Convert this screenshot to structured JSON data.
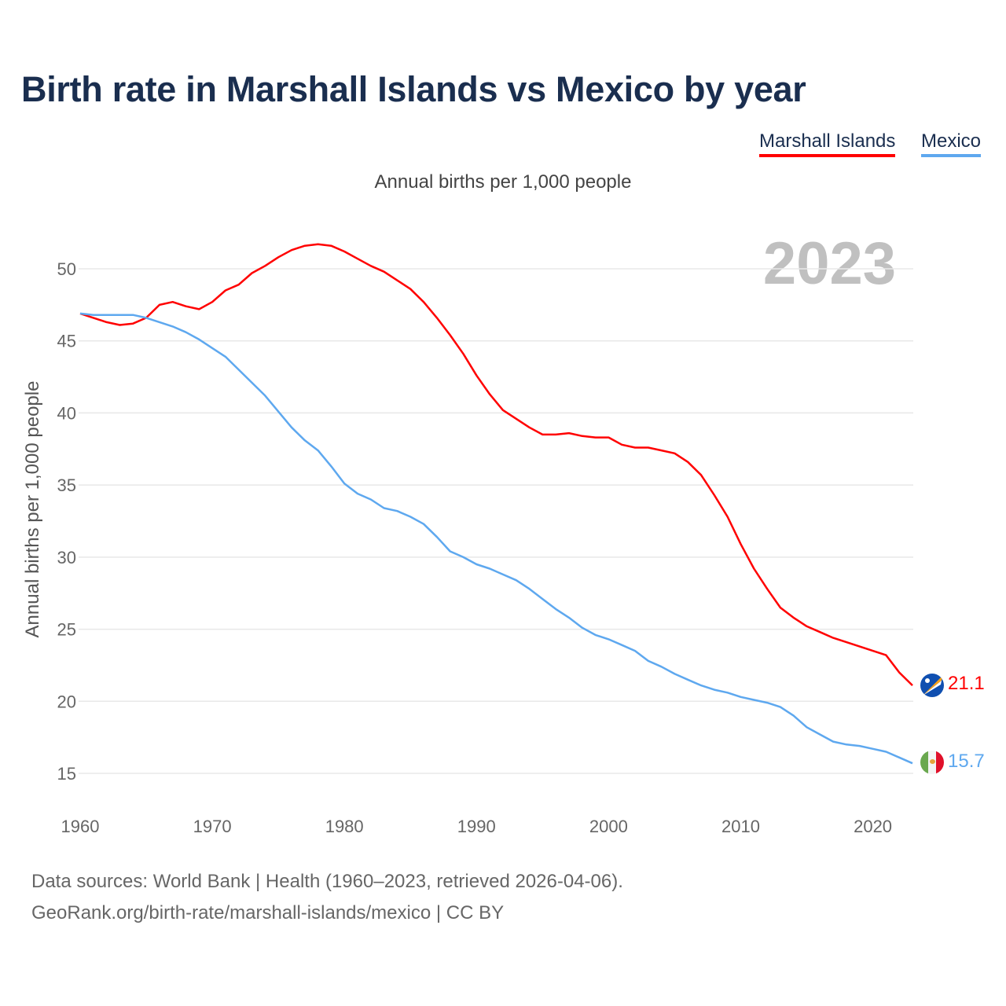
{
  "title": "Birth rate in Marshall Islands vs Mexico by year",
  "year_display": "2023",
  "footer": {
    "line1": "Data sources: World Bank | Health (1960–2023, retrieved 2026-04-06).",
    "line2": "GeoRank.org/birth-rate/marshall-islands/mexico | CC BY"
  },
  "chart_data": {
    "type": "line",
    "title": "Birth rate in Marshall Islands vs Mexico by year",
    "subtitle": "Annual births per 1,000 people",
    "xlabel": "",
    "ylabel": "Annual births per 1,000 people",
    "xlim": [
      1960,
      2023
    ],
    "ylim": [
      15,
      50
    ],
    "yticks": [
      "15",
      "20",
      "25",
      "30",
      "35",
      "40",
      "45",
      "50"
    ],
    "xticks": [
      "1960",
      "1970",
      "1980",
      "1990",
      "2000",
      "2010",
      "2020"
    ],
    "grid": true,
    "legend_position": "top-right",
    "series": [
      {
        "name": "Marshall Islands",
        "color": "#ff0000",
        "end_label": "21.1",
        "flag_icon": "marshall-islands-flag-icon",
        "values": [
          46.9,
          46.6,
          46.3,
          46.1,
          46.2,
          46.6,
          47.5,
          47.7,
          47.4,
          47.2,
          47.7,
          48.5,
          48.9,
          49.7,
          50.2,
          50.8,
          51.3,
          51.6,
          51.7,
          51.6,
          51.2,
          50.7,
          50.2,
          49.8,
          49.2,
          48.6,
          47.7,
          46.6,
          45.4,
          44.1,
          42.6,
          41.3,
          40.2,
          39.6,
          39.0,
          38.5,
          38.5,
          38.6,
          38.4,
          38.3,
          38.3,
          37.8,
          37.6,
          37.6,
          37.4,
          37.2,
          36.6,
          35.7,
          34.3,
          32.8,
          30.9,
          29.2,
          27.8,
          26.5,
          25.8,
          25.2,
          24.8,
          24.4,
          24.1,
          23.8,
          23.5,
          23.2,
          22.0,
          21.1
        ]
      },
      {
        "name": "Mexico",
        "color": "#5ea8ef",
        "end_label": "15.7",
        "flag_icon": "mexico-flag-icon",
        "values": [
          46.9,
          46.8,
          46.8,
          46.8,
          46.8,
          46.6,
          46.3,
          46.0,
          45.6,
          45.1,
          44.5,
          43.9,
          43.0,
          42.1,
          41.2,
          40.1,
          39.0,
          38.1,
          37.4,
          36.3,
          35.1,
          34.4,
          34.0,
          33.4,
          33.2,
          32.8,
          32.3,
          31.4,
          30.4,
          30.0,
          29.5,
          29.2,
          28.8,
          28.4,
          27.8,
          27.1,
          26.4,
          25.8,
          25.1,
          24.6,
          24.3,
          23.9,
          23.5,
          22.8,
          22.4,
          21.9,
          21.5,
          21.1,
          20.8,
          20.6,
          20.3,
          20.1,
          19.9,
          19.6,
          19.0,
          18.2,
          17.7,
          17.2,
          17.0,
          16.9,
          16.7,
          16.5,
          16.1,
          15.7
        ]
      }
    ]
  }
}
